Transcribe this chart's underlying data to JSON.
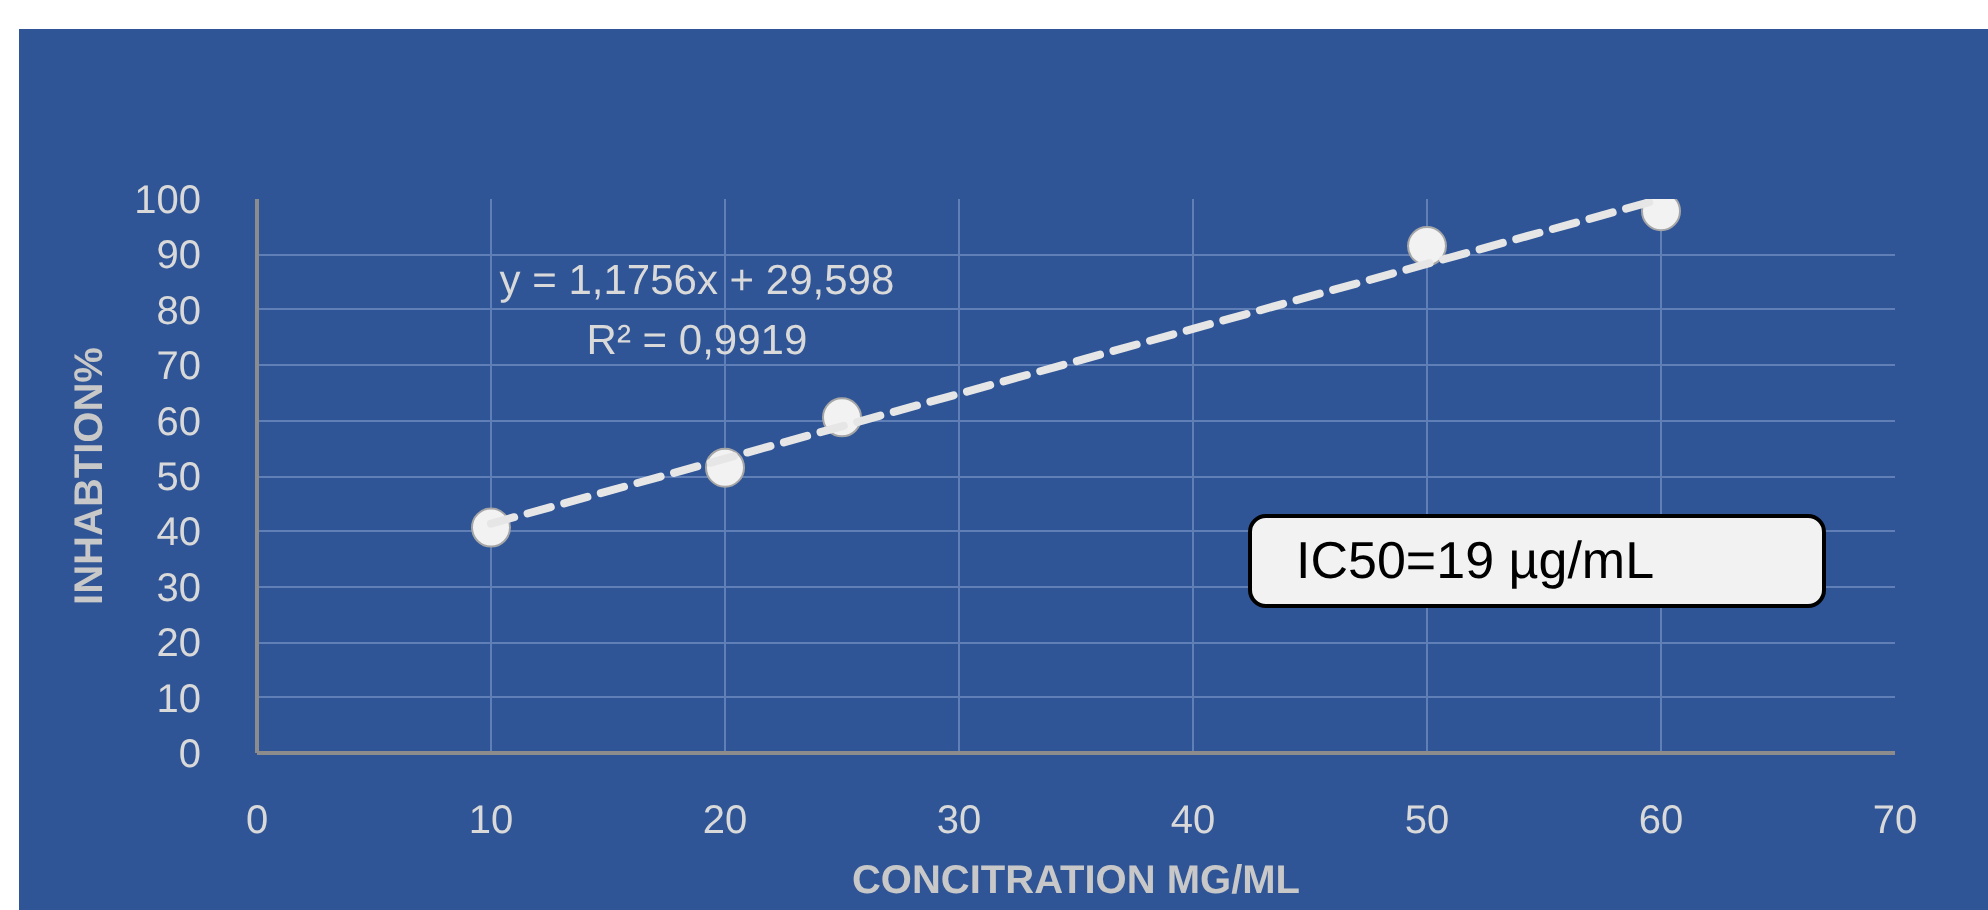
{
  "chart_data": {
    "type": "scatter",
    "xlabel": "CONCITRATION MG/ML",
    "ylabel": "INHABTION%",
    "x": [
      10,
      20,
      25,
      50,
      60
    ],
    "series": [
      {
        "color": "#f2f2f2",
        "marker": "circle",
        "values": [
          40.7,
          51.5,
          60.6,
          91.5,
          97.8
        ]
      },
      {
        "type": "line",
        "x": [
          10,
          60
        ],
        "color": "#e6e6e6",
        "line_style": "dashed",
        "values": [
          41.4,
          100
        ]
      }
    ],
    "xlim": [
      0,
      70
    ],
    "ylim": [
      0,
      100
    ],
    "xticks": [
      0,
      10,
      20,
      30,
      40,
      50,
      60,
      70
    ],
    "yticks": [
      0,
      10,
      20,
      30,
      40,
      50,
      60,
      70,
      80,
      90,
      100
    ],
    "grid": true,
    "annotations": [
      "y = 1,1756x + 29,598",
      "R² = 0,9919",
      "IC50=19 µg/mL"
    ]
  }
}
